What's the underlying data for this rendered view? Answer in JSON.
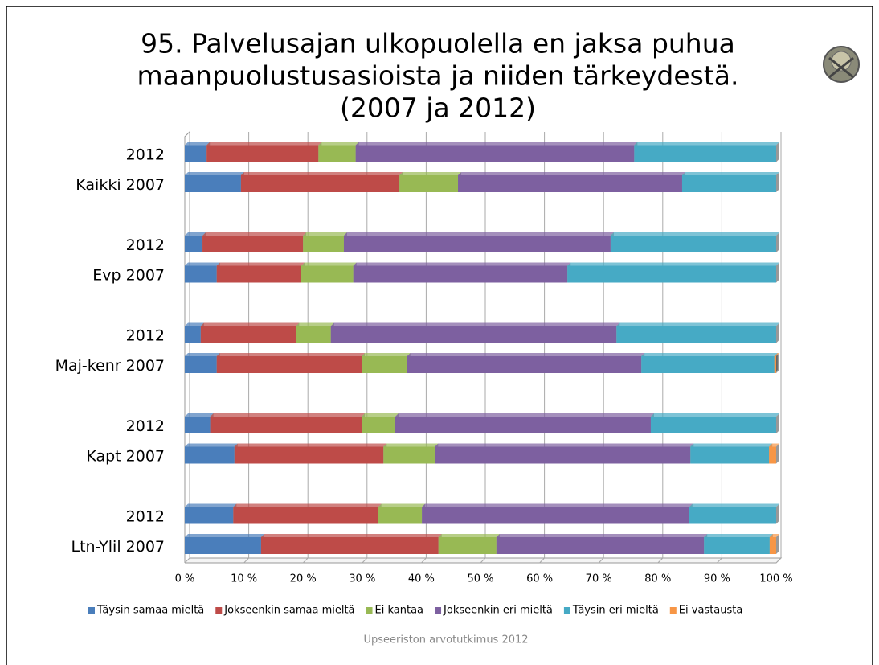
{
  "chart_data": {
    "type": "stacked-bar-horizontal",
    "title": [
      "95. Palvelusajan ulkopuolella en jaksa puhua",
      "maanpuolustusasioista ja niiden tärkeydestä.",
      "(2007 ja 2012)"
    ],
    "categories": [
      "2012",
      "Kaikki 2007",
      "2012",
      "Evp 2007",
      "2012",
      "Maj-kenr 2007",
      "2012",
      "Kapt 2007",
      "2012",
      "Ltn-Ylil 2007"
    ],
    "series": [
      {
        "name": "Täysin samaa mieltä",
        "color": "#4a7ebb",
        "values": [
          3.7,
          9.5,
          3.0,
          5.4,
          2.7,
          5.4,
          4.3,
          8.4,
          8.2,
          12.9
        ]
      },
      {
        "name": "Jokseenkin samaa mieltä",
        "color": "#be4b48",
        "values": [
          18.9,
          26.8,
          17.0,
          14.3,
          16.1,
          24.5,
          25.6,
          25.2,
          24.5,
          30.0
        ]
      },
      {
        "name": "Ei kantaa",
        "color": "#98b954",
        "values": [
          6.3,
          9.9,
          6.9,
          8.8,
          5.9,
          7.7,
          5.7,
          8.7,
          7.4,
          9.8
        ]
      },
      {
        "name": "Jokseenkin eri mieltä",
        "color": "#7d60a0",
        "values": [
          47.1,
          37.9,
          45.1,
          36.2,
          48.3,
          39.6,
          43.2,
          43.2,
          45.2,
          35.1
        ]
      },
      {
        "name": "Täysin eri mieltä",
        "color": "#46aac5",
        "values": [
          24.0,
          15.9,
          28.0,
          35.3,
          27.0,
          22.5,
          21.2,
          13.3,
          14.7,
          11.1
        ]
      },
      {
        "name": "Ei vastausta",
        "color": "#f79646",
        "values": [
          0,
          0,
          0,
          0,
          0,
          0.3,
          0,
          1.2,
          0,
          1.1
        ]
      }
    ],
    "xlim": [
      0,
      100
    ],
    "xticks": [
      {
        "value": 0,
        "label": "0 %"
      },
      {
        "value": 10,
        "label": "10 %"
      },
      {
        "value": 20,
        "label": "20 %"
      },
      {
        "value": 30,
        "label": "30 %"
      },
      {
        "value": 40,
        "label": "40 %"
      },
      {
        "value": 50,
        "label": "50 %"
      },
      {
        "value": 60,
        "label": "60 %"
      },
      {
        "value": 70,
        "label": "70 %"
      },
      {
        "value": 80,
        "label": "80 %"
      },
      {
        "value": 90,
        "label": "90 %"
      },
      {
        "value": 100,
        "label": "100 %"
      }
    ],
    "grid": true,
    "legend": "bottom",
    "source": "Upseeriston arvotutkimus 2012"
  }
}
